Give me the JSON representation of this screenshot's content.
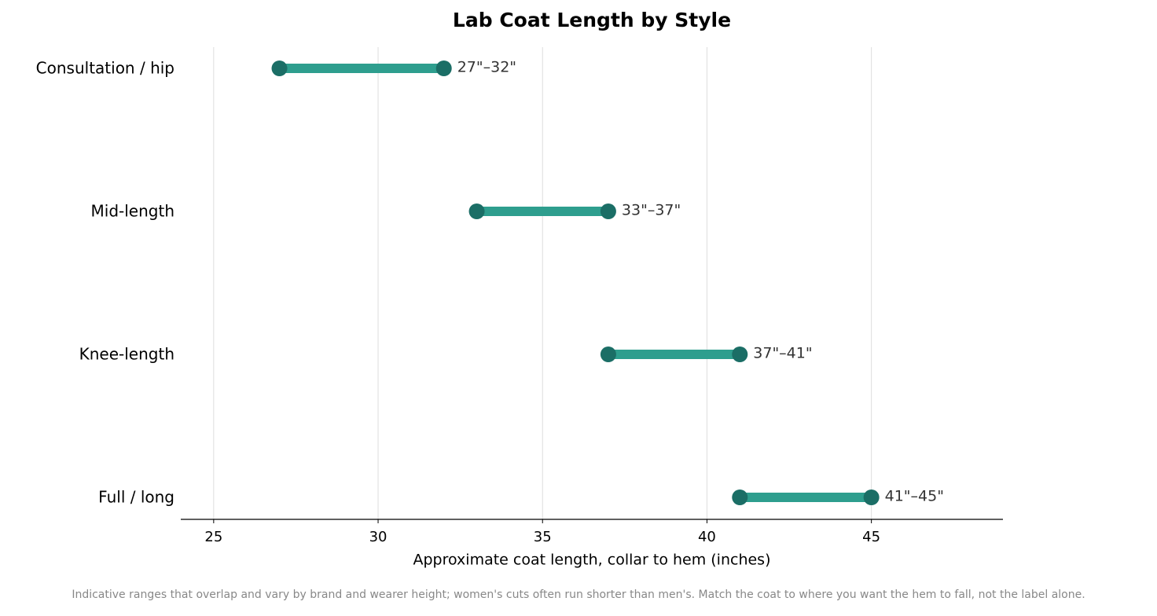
{
  "chart_data": {
    "type": "dumbbell",
    "title": "Lab Coat Length by Style",
    "x_label": "Approximate coat length, collar to hem (inches)",
    "footnote": "Indicative ranges that overlap and vary by brand and wearer height; women's cuts often run shorter than men's. Match the coat to where you want the hem to fall, not the label alone.",
    "categories": [
      "Consultation / hip",
      "Mid-length",
      "Knee-length",
      "Full / long"
    ],
    "low": [
      27,
      33,
      37,
      41
    ],
    "high": [
      32,
      37,
      41,
      45
    ],
    "value_labels": [
      "27\"–32\"",
      "33\"–37\"",
      "37\"–41\"",
      "41\"–45\""
    ],
    "line_color": "#2e9e8e",
    "dot_color": "#1b6e66",
    "xlim": [
      24,
      49
    ],
    "xticks": [
      25,
      30,
      35,
      40,
      45
    ],
    "grid": true
  }
}
